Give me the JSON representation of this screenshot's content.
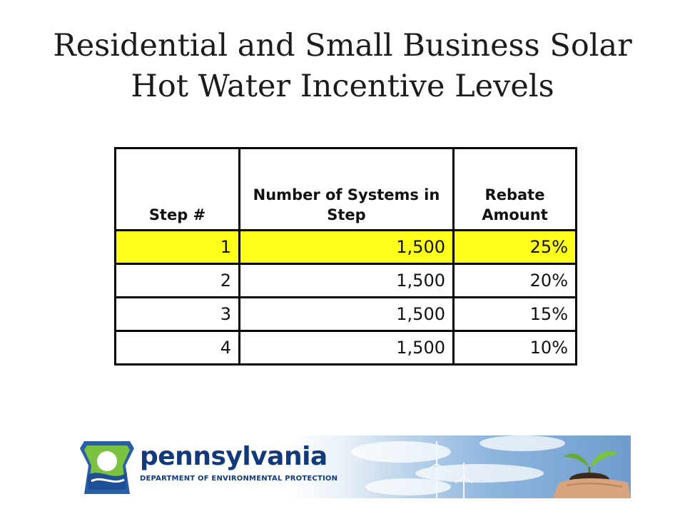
{
  "slide": {
    "title_line1": "Residential and Small Business Solar",
    "title_line2": "Hot Water Incentive Levels"
  },
  "table": {
    "headers": [
      "Step #",
      "Number of Systems in Step",
      "Rebate Amount"
    ],
    "rows": [
      {
        "step": "1",
        "systems": "1,500",
        "rebate": "25%",
        "highlighted": true
      },
      {
        "step": "2",
        "systems": "1,500",
        "rebate": "20%",
        "highlighted": false
      },
      {
        "step": "3",
        "systems": "1,500",
        "rebate": "15%",
        "highlighted": false
      },
      {
        "step": "4",
        "systems": "1,500",
        "rebate": "10%",
        "highlighted": false
      }
    ],
    "highlight_color": "#ffff1e"
  },
  "footer": {
    "logo_name": "pennsylvania",
    "logo_department": "DEPARTMENT OF ENVIRONMENTAL PROTECTION",
    "brand_color": "#123a7a",
    "images": [
      "keystone-logo-icon",
      "wind-turbine-icon",
      "seedling-in-hands-icon"
    ]
  }
}
